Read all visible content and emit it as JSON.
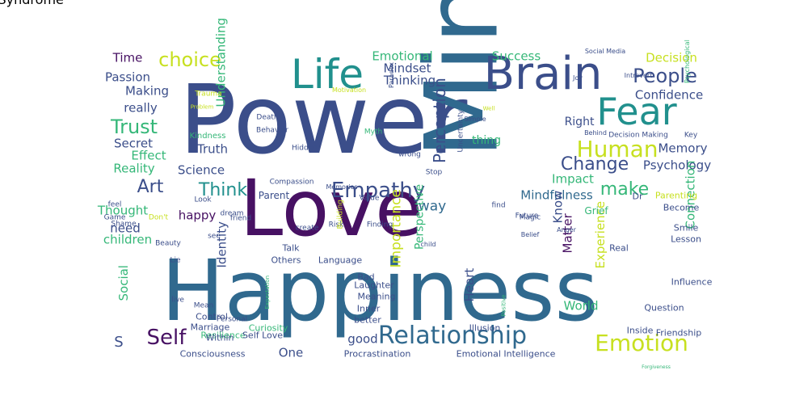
{
  "palette": {
    "dark_purple": "#471163",
    "indigo": "#3b4e8a",
    "blue": "#30698e",
    "teal": "#21908d",
    "green": "#35b778",
    "lime": "#6ccd5a",
    "yellow": "#c7e020"
  },
  "words": [
    {
      "text": "Power",
      "color": "#3b4e8a"
    },
    {
      "text": "Mind",
      "color": "#30698e"
    },
    {
      "text": "Love",
      "color": "#471163"
    },
    {
      "text": "Happiness",
      "color": "#30698e"
    },
    {
      "text": "Brain",
      "color": "#3b4e8a"
    },
    {
      "text": "Life",
      "color": "#21908d"
    },
    {
      "text": "Fear",
      "color": "#21908d"
    },
    {
      "text": "Human",
      "color": "#c7e020"
    },
    {
      "text": "Empathy",
      "color": "#3b4e8a"
    },
    {
      "text": "Relationship",
      "color": "#30698e"
    },
    {
      "text": "Emotion",
      "color": "#c7e020"
    },
    {
      "text": "Self",
      "color": "#471163"
    },
    {
      "text": "choice",
      "color": "#c7e020"
    },
    {
      "text": "Trust",
      "color": "#35b778"
    },
    {
      "text": "People",
      "color": "#3b4e8a"
    },
    {
      "text": "Change",
      "color": "#3b4e8a"
    },
    {
      "text": "Think",
      "color": "#21908d"
    },
    {
      "text": "Art",
      "color": "#3b4e8a"
    },
    {
      "text": "make",
      "color": "#35b778"
    },
    {
      "text": "Perception",
      "color": "#3b4e8a"
    },
    {
      "text": "Mindset",
      "color": "#3b4e8a"
    },
    {
      "text": "Thinking",
      "color": "#3b4e8a"
    },
    {
      "text": "Emotional",
      "color": "#35b778"
    },
    {
      "text": "Success",
      "color": "#35b778"
    },
    {
      "text": "Confidence",
      "color": "#3b4e8a"
    },
    {
      "text": "Decision",
      "color": "#c7e020"
    },
    {
      "text": "Psychology",
      "color": "#3b4e8a"
    },
    {
      "text": "Memory",
      "color": "#3b4e8a"
    },
    {
      "text": "Mindfulness",
      "color": "#30698e"
    },
    {
      "text": "Impact",
      "color": "#35b778"
    },
    {
      "text": "Understanding",
      "color": "#35b778"
    },
    {
      "text": "Science",
      "color": "#3b4e8a"
    },
    {
      "text": "Truth",
      "color": "#3b4e8a"
    },
    {
      "text": "Secret",
      "color": "#3b4e8a"
    },
    {
      "text": "Effect",
      "color": "#35b778"
    },
    {
      "text": "Reality",
      "color": "#35b778"
    },
    {
      "text": "really",
      "color": "#3b4e8a"
    },
    {
      "text": "Making",
      "color": "#3b4e8a"
    },
    {
      "text": "Passion",
      "color": "#3b4e8a"
    },
    {
      "text": "Time",
      "color": "#471163"
    },
    {
      "text": "Thought",
      "color": "#35b778"
    },
    {
      "text": "happy",
      "color": "#471163"
    },
    {
      "text": "need",
      "color": "#3b4e8a"
    },
    {
      "text": "children",
      "color": "#35b778"
    },
    {
      "text": "Parent",
      "color": "#3b4e8a"
    },
    {
      "text": "way",
      "color": "#30698e"
    },
    {
      "text": "Importance",
      "color": "#c7e020"
    },
    {
      "text": "Perspective",
      "color": "#35b778"
    },
    {
      "text": "Right",
      "color": "#3b4e8a"
    },
    {
      "text": "thing",
      "color": "#35b778"
    },
    {
      "text": "Know",
      "color": "#3b4e8a"
    },
    {
      "text": "Matter",
      "color": "#471163"
    },
    {
      "text": "Heart",
      "color": "#3b4e8a"
    },
    {
      "text": "Experience",
      "color": "#c7e020"
    },
    {
      "text": "Connection",
      "color": "#35b778"
    },
    {
      "text": "World",
      "color": "#35b778"
    },
    {
      "text": "Identity",
      "color": "#3b4e8a"
    },
    {
      "text": "Social",
      "color": "#35b778"
    },
    {
      "text": "S",
      "color": "#3b4e8a"
    },
    {
      "text": "One",
      "color": "#3b4e8a"
    },
    {
      "text": "good",
      "color": "#3b4e8a"
    },
    {
      "text": "Procrastination",
      "color": "#3b4e8a"
    },
    {
      "text": "Emotional Intelligence",
      "color": "#3b4e8a"
    },
    {
      "text": "Illusion",
      "color": "#3b4e8a"
    },
    {
      "text": "Laughter",
      "color": "#3b4e8a"
    },
    {
      "text": "Meaning",
      "color": "#3b4e8a"
    },
    {
      "text": "Inner",
      "color": "#3b4e8a"
    },
    {
      "text": "better",
      "color": "#3b4e8a"
    },
    {
      "text": "Bad",
      "color": "#3b4e8a"
    },
    {
      "text": "Language",
      "color": "#3b4e8a"
    },
    {
      "text": "Others",
      "color": "#3b4e8a"
    },
    {
      "text": "Talk",
      "color": "#3b4e8a"
    },
    {
      "text": "Resilience",
      "color": "#35b778"
    },
    {
      "text": "Self Love",
      "color": "#3b4e8a"
    },
    {
      "text": "Curiosity",
      "color": "#35b778"
    },
    {
      "text": "Control",
      "color": "#3b4e8a"
    },
    {
      "text": "Marriage",
      "color": "#3b4e8a"
    },
    {
      "text": "Within",
      "color": "#3b4e8a"
    },
    {
      "text": "Consciousness",
      "color": "#3b4e8a"
    },
    {
      "text": "Grief",
      "color": "#35b778"
    },
    {
      "text": "Smile",
      "color": "#3b4e8a"
    },
    {
      "text": "Lesson",
      "color": "#3b4e8a"
    },
    {
      "text": "Influence",
      "color": "#3b4e8a"
    },
    {
      "text": "Question",
      "color": "#3b4e8a"
    },
    {
      "text": "Friendship",
      "color": "#3b4e8a"
    },
    {
      "text": "Inside",
      "color": "#3b4e8a"
    },
    {
      "text": "Real",
      "color": "#3b4e8a"
    },
    {
      "text": "Dr",
      "color": "#3b4e8a"
    },
    {
      "text": "Parenting",
      "color": "#c7e020"
    },
    {
      "text": "Become",
      "color": "#3b4e8a"
    },
    {
      "text": "Key",
      "color": "#3b4e8a"
    },
    {
      "text": "Decision Making",
      "color": "#3b4e8a"
    },
    {
      "text": "Simple",
      "color": "#3b4e8a"
    },
    {
      "text": "Social Media",
      "color": "#3b4e8a"
    },
    {
      "text": "Joy",
      "color": "#3b4e8a"
    },
    {
      "text": "Introvert",
      "color": "#3b4e8a"
    },
    {
      "text": "Trauma",
      "color": "#c7e020"
    },
    {
      "text": "Kindness",
      "color": "#35b778"
    },
    {
      "text": "Behavior",
      "color": "#3b4e8a"
    },
    {
      "text": "Death",
      "color": "#3b4e8a"
    },
    {
      "text": "Hidden",
      "color": "#3b4e8a"
    },
    {
      "text": "Compassion",
      "color": "#3b4e8a"
    },
    {
      "text": "Look",
      "color": "#3b4e8a"
    },
    {
      "text": "feel",
      "color": "#3b4e8a"
    },
    {
      "text": "Game",
      "color": "#3b4e8a"
    },
    {
      "text": "Shame",
      "color": "#3b4e8a"
    },
    {
      "text": "Don't",
      "color": "#c7e020"
    },
    {
      "text": "Beauty",
      "color": "#3b4e8a"
    },
    {
      "text": "Mean",
      "color": "#3b4e8a"
    },
    {
      "text": "Lie",
      "color": "#3b4e8a"
    },
    {
      "text": "live",
      "color": "#3b4e8a"
    },
    {
      "text": "Personal",
      "color": "#3b4e8a"
    },
    {
      "text": "friend",
      "color": "#3b4e8a"
    },
    {
      "text": "dream",
      "color": "#3b4e8a"
    },
    {
      "text": "see",
      "color": "#3b4e8a"
    },
    {
      "text": "create",
      "color": "#3b4e8a"
    },
    {
      "text": "Risk",
      "color": "#3b4e8a"
    },
    {
      "text": "Finding",
      "color": "#3b4e8a"
    },
    {
      "text": "Value",
      "color": "#3b4e8a"
    },
    {
      "text": "Memories",
      "color": "#3b4e8a"
    },
    {
      "text": "Stop",
      "color": "#3b4e8a"
    },
    {
      "text": "wrong",
      "color": "#3b4e8a"
    },
    {
      "text": "Myth",
      "color": "#35b778"
    },
    {
      "text": "Uncertainty",
      "color": "#3b4e8a"
    },
    {
      "text": "find",
      "color": "#3b4e8a"
    },
    {
      "text": "Future",
      "color": "#3b4e8a"
    },
    {
      "text": "Magic",
      "color": "#3b4e8a"
    },
    {
      "text": "Belief",
      "color": "#3b4e8a"
    },
    {
      "text": "child",
      "color": "#3b4e8a"
    },
    {
      "text": "Building",
      "color": "#c7e020"
    },
    {
      "text": "Expectation",
      "color": "#35b778"
    },
    {
      "text": "Positive",
      "color": "#35b778"
    },
    {
      "text": "Anger",
      "color": "#3b4e8a"
    },
    {
      "text": "Paradox",
      "color": "#3b4e8a"
    },
    {
      "text": "Motivation",
      "color": "#c7e020"
    },
    {
      "text": "Behind",
      "color": "#3b4e8a"
    },
    {
      "text": "Well",
      "color": "#c7e020"
    },
    {
      "text": "Psychological",
      "color": "#35b778"
    },
    {
      "text": "Problem",
      "color": "#c7e020"
    },
    {
      "text": "Forgiveness",
      "color": "#35b778"
    },
    {
      "text": "Imposter Syndrome",
      "color": "#3b4e8a"
    }
  ]
}
